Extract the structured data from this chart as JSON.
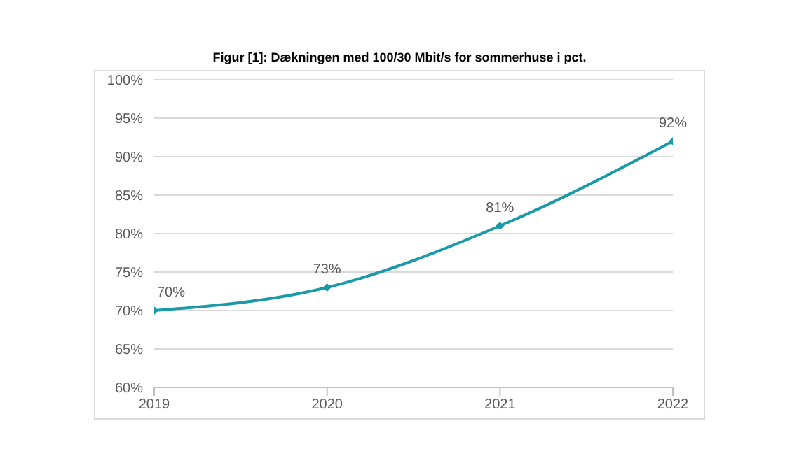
{
  "chart_data": {
    "type": "line",
    "title": "Figur [1]: Dækningen med 100/30 Mbit/s for sommerhuse i pct.",
    "x": [
      2019,
      2020,
      2021,
      2022
    ],
    "series": [
      {
        "color": "#1a9aa8",
        "values": [
          70,
          73,
          81,
          92
        ],
        "value_labels": [
          "70%",
          "73%",
          "81%",
          "92%"
        ]
      }
    ],
    "xlim": [
      2019,
      2022
    ],
    "xticks": [
      2019,
      2020,
      2021,
      2022
    ],
    "ylim": [
      60,
      100
    ],
    "yticks": [
      {
        "value": 60,
        "label": "60%"
      },
      {
        "value": 65,
        "label": "65%"
      },
      {
        "value": 70,
        "label": "70%"
      },
      {
        "value": 75,
        "label": "75%"
      },
      {
        "value": 80,
        "label": "80%"
      },
      {
        "value": 85,
        "label": "85%"
      },
      {
        "value": 90,
        "label": "90%"
      },
      {
        "value": 95,
        "label": "95%"
      },
      {
        "value": 100,
        "label": "100%"
      }
    ],
    "grid": "y",
    "marker": "diamond",
    "line_style": "solid",
    "legend": false
  }
}
